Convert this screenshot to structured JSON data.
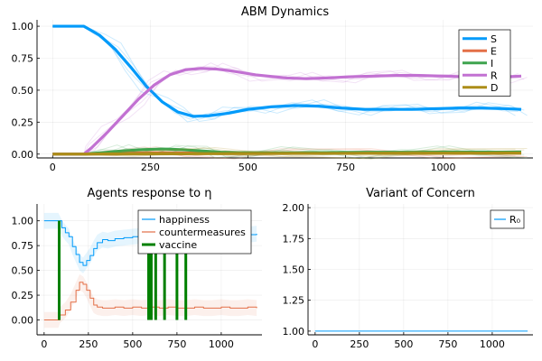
{
  "chart_data": [
    {
      "type": "line",
      "title": "ABM Dynamics",
      "xlim": [
        -40,
        1230
      ],
      "ylim": [
        -0.03,
        1.05
      ],
      "xticks": [
        0,
        250,
        500,
        750,
        1000
      ],
      "yticks": [
        0.0,
        0.25,
        0.5,
        0.75,
        1.0
      ],
      "xtick_labels": [
        "0",
        "250",
        "500",
        "750",
        "1000"
      ],
      "ytick_labels": [
        "0.00",
        "0.25",
        "0.50",
        "0.75",
        "1.00"
      ],
      "grid": true,
      "legend": "top-right",
      "series": [
        {
          "name": "S",
          "color": "#009AFA",
          "x": [
            0,
            80,
            120,
            160,
            200,
            240,
            280,
            320,
            360,
            400,
            450,
            500,
            560,
            620,
            680,
            740,
            800,
            860,
            920,
            980,
            1040,
            1100,
            1160,
            1200
          ],
          "y": [
            1.0,
            1.0,
            0.93,
            0.82,
            0.68,
            0.53,
            0.41,
            0.33,
            0.295,
            0.3,
            0.32,
            0.35,
            0.37,
            0.38,
            0.375,
            0.36,
            0.35,
            0.35,
            0.35,
            0.355,
            0.36,
            0.36,
            0.355,
            0.35
          ]
        },
        {
          "name": "E",
          "color": "#E36F47",
          "x": [
            0,
            80,
            150,
            250,
            350,
            450,
            600,
            800,
            1000,
            1200
          ],
          "y": [
            0.0,
            0.0,
            0.005,
            0.01,
            0.008,
            0.006,
            0.007,
            0.007,
            0.007,
            0.007
          ]
        },
        {
          "name": "I",
          "color": "#3EA44E",
          "x": [
            0,
            80,
            130,
            180,
            230,
            280,
            330,
            380,
            430,
            500,
            600,
            700,
            800,
            900,
            1000,
            1100,
            1200
          ],
          "y": [
            0.0,
            0.0,
            0.012,
            0.025,
            0.035,
            0.04,
            0.035,
            0.025,
            0.015,
            0.01,
            0.01,
            0.012,
            0.014,
            0.014,
            0.015,
            0.015,
            0.016
          ]
        },
        {
          "name": "R",
          "color": "#C271D2",
          "x": [
            0,
            80,
            100,
            140,
            180,
            220,
            260,
            300,
            340,
            380,
            420,
            460,
            520,
            600,
            650,
            700,
            760,
            820,
            880,
            940,
            1000,
            1060,
            1120,
            1160,
            1200
          ],
          "y": [
            0.0,
            0.0,
            0.05,
            0.17,
            0.3,
            0.43,
            0.54,
            0.62,
            0.66,
            0.67,
            0.665,
            0.65,
            0.62,
            0.595,
            0.59,
            0.595,
            0.605,
            0.61,
            0.615,
            0.615,
            0.61,
            0.605,
            0.6,
            0.605,
            0.61
          ]
        },
        {
          "name": "D",
          "color": "#AC8D18",
          "x": [
            0,
            80,
            200,
            400,
            600,
            800,
            1000,
            1200
          ],
          "y": [
            0.0,
            0.0,
            0.001,
            0.003,
            0.005,
            0.006,
            0.007,
            0.008
          ]
        }
      ]
    },
    {
      "type": "line",
      "title": "Agents response to η",
      "xlim": [
        -40,
        1230
      ],
      "ylim": [
        -0.15,
        1.17
      ],
      "xticks": [
        0,
        250,
        500,
        750,
        1000
      ],
      "yticks": [
        0.0,
        0.25,
        0.5,
        0.75,
        1.0
      ],
      "xtick_labels": [
        "0",
        "250",
        "500",
        "750",
        "1000"
      ],
      "ytick_labels": [
        "0.00",
        "0.25",
        "0.50",
        "0.75",
        "1.00"
      ],
      "grid": true,
      "legend": "top-right",
      "series": [
        {
          "name": "happiness",
          "color": "#009AFA",
          "x": [
            0,
            80,
            100,
            120,
            140,
            160,
            180,
            200,
            220,
            240,
            260,
            280,
            300,
            330,
            360,
            400,
            450,
            500,
            550,
            600,
            650,
            700,
            750,
            800,
            850,
            900,
            950,
            1000,
            1050,
            1100,
            1150,
            1200
          ],
          "y": [
            1.0,
            1.0,
            0.93,
            0.88,
            0.84,
            0.74,
            0.66,
            0.58,
            0.55,
            0.6,
            0.65,
            0.72,
            0.78,
            0.81,
            0.8,
            0.82,
            0.83,
            0.84,
            0.85,
            0.86,
            0.87,
            0.88,
            0.88,
            0.87,
            0.86,
            0.87,
            0.87,
            0.86,
            0.87,
            0.87,
            0.86,
            0.87
          ]
        },
        {
          "name": "countermeasures",
          "color": "#E36F47",
          "x": [
            0,
            80,
            90,
            120,
            150,
            180,
            200,
            220,
            240,
            260,
            280,
            300,
            330,
            360,
            400,
            450,
            500,
            550,
            600,
            650,
            700,
            750,
            800,
            850,
            900,
            950,
            1000,
            1050,
            1100,
            1150,
            1200
          ],
          "y": [
            0.0,
            0.0,
            0.05,
            0.1,
            0.18,
            0.3,
            0.38,
            0.36,
            0.3,
            0.22,
            0.15,
            0.13,
            0.12,
            0.12,
            0.13,
            0.12,
            0.13,
            0.12,
            0.13,
            0.12,
            0.13,
            0.12,
            0.12,
            0.13,
            0.12,
            0.12,
            0.13,
            0.12,
            0.12,
            0.13,
            0.12
          ]
        },
        {
          "name": "vaccine",
          "color": "#008000",
          "spikes_x": [
            85,
            590,
            605,
            630,
            680,
            750,
            800
          ],
          "spike_height": 1.0
        }
      ]
    },
    {
      "type": "line",
      "title": "Variant of Concern",
      "xlim": [
        -40,
        1230
      ],
      "ylim": [
        0.97,
        2.03
      ],
      "xticks": [
        0,
        250,
        500,
        750,
        1000
      ],
      "yticks": [
        1.0,
        1.25,
        1.5,
        1.75,
        2.0
      ],
      "xtick_labels": [
        "0",
        "250",
        "500",
        "750",
        "1000"
      ],
      "ytick_labels": [
        "1.00",
        "1.25",
        "1.50",
        "1.75",
        "2.00"
      ],
      "grid": true,
      "legend": "top-right",
      "series": [
        {
          "name": "R₀",
          "color": "#009AFA",
          "x": [
            0,
            1200
          ],
          "y": [
            1.0,
            1.0
          ]
        }
      ]
    }
  ]
}
